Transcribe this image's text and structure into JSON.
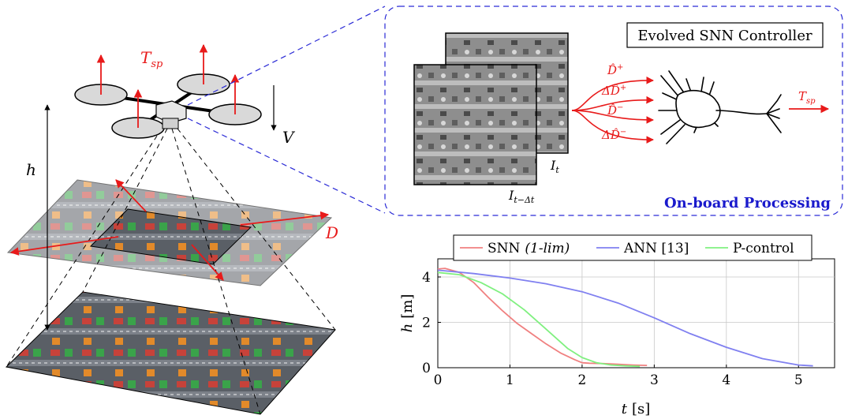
{
  "drone": {
    "thrust_label": "T",
    "thrust_sub": "sp",
    "velocity_label": "V",
    "height_label": "h",
    "divergence_label": "D"
  },
  "processing": {
    "controller_title": "Evolved SNN Controller",
    "frame_current": "I",
    "frame_current_sub": "t",
    "frame_previous": "I",
    "frame_previous_sub": "t−Δt",
    "inputs": [
      {
        "prefix": "",
        "base": "D̂",
        "sup": "+"
      },
      {
        "prefix": "Δ",
        "base": "D̂",
        "sup": "+"
      },
      {
        "prefix": "",
        "base": "D̂",
        "sup": "−"
      },
      {
        "prefix": "Δ",
        "base": "D̂",
        "sup": "−"
      }
    ],
    "output_label": "T",
    "output_sub": "sp",
    "caption": "On-board Processing"
  },
  "colors": {
    "red": "#e81a1a",
    "blue_dash": "#2a2ad6",
    "caption_blue": "#1a1acc",
    "snn": "#f08080",
    "ann": "#8080f0",
    "pcontrol": "#80f080"
  },
  "chart_data": {
    "type": "line",
    "xlabel_var": "t",
    "xlabel_unit": "[s]",
    "ylabel_var": "h",
    "ylabel_unit": "[m]",
    "xlim": [
      0,
      5.5
    ],
    "ylim": [
      0,
      4.8
    ],
    "xticks": [
      0,
      1,
      2,
      3,
      4,
      5
    ],
    "yticks": [
      0,
      2,
      4
    ],
    "grid": true,
    "legend_position": "top",
    "series": [
      {
        "name": "SNN",
        "name_suffix": "(1-lim)",
        "color": "#f08080",
        "x": [
          0,
          0.1,
          0.3,
          0.5,
          0.7,
          0.9,
          1.1,
          1.3,
          1.5,
          1.7,
          1.9,
          2.0,
          2.1,
          2.3,
          2.5,
          2.7,
          2.9
        ],
        "y": [
          4.35,
          4.38,
          4.2,
          3.75,
          3.1,
          2.5,
          1.95,
          1.5,
          1.05,
          0.65,
          0.35,
          0.22,
          0.2,
          0.18,
          0.15,
          0.12,
          0.1
        ]
      },
      {
        "name": "ANN [13]",
        "name_suffix": "",
        "color": "#8080f0",
        "x": [
          0,
          0.5,
          1.0,
          1.5,
          2.0,
          2.5,
          3.0,
          3.5,
          4.0,
          4.5,
          5.0,
          5.2
        ],
        "y": [
          4.3,
          4.15,
          3.95,
          3.7,
          3.35,
          2.85,
          2.2,
          1.5,
          0.9,
          0.4,
          0.12,
          0.08
        ]
      },
      {
        "name": "P-control",
        "name_suffix": "",
        "color": "#80f080",
        "x": [
          0,
          0.3,
          0.6,
          0.9,
          1.2,
          1.5,
          1.8,
          2.0,
          2.2,
          2.4,
          2.6,
          2.8
        ],
        "y": [
          4.2,
          4.1,
          3.75,
          3.25,
          2.55,
          1.7,
          0.85,
          0.45,
          0.22,
          0.12,
          0.08,
          0.06
        ]
      }
    ]
  }
}
